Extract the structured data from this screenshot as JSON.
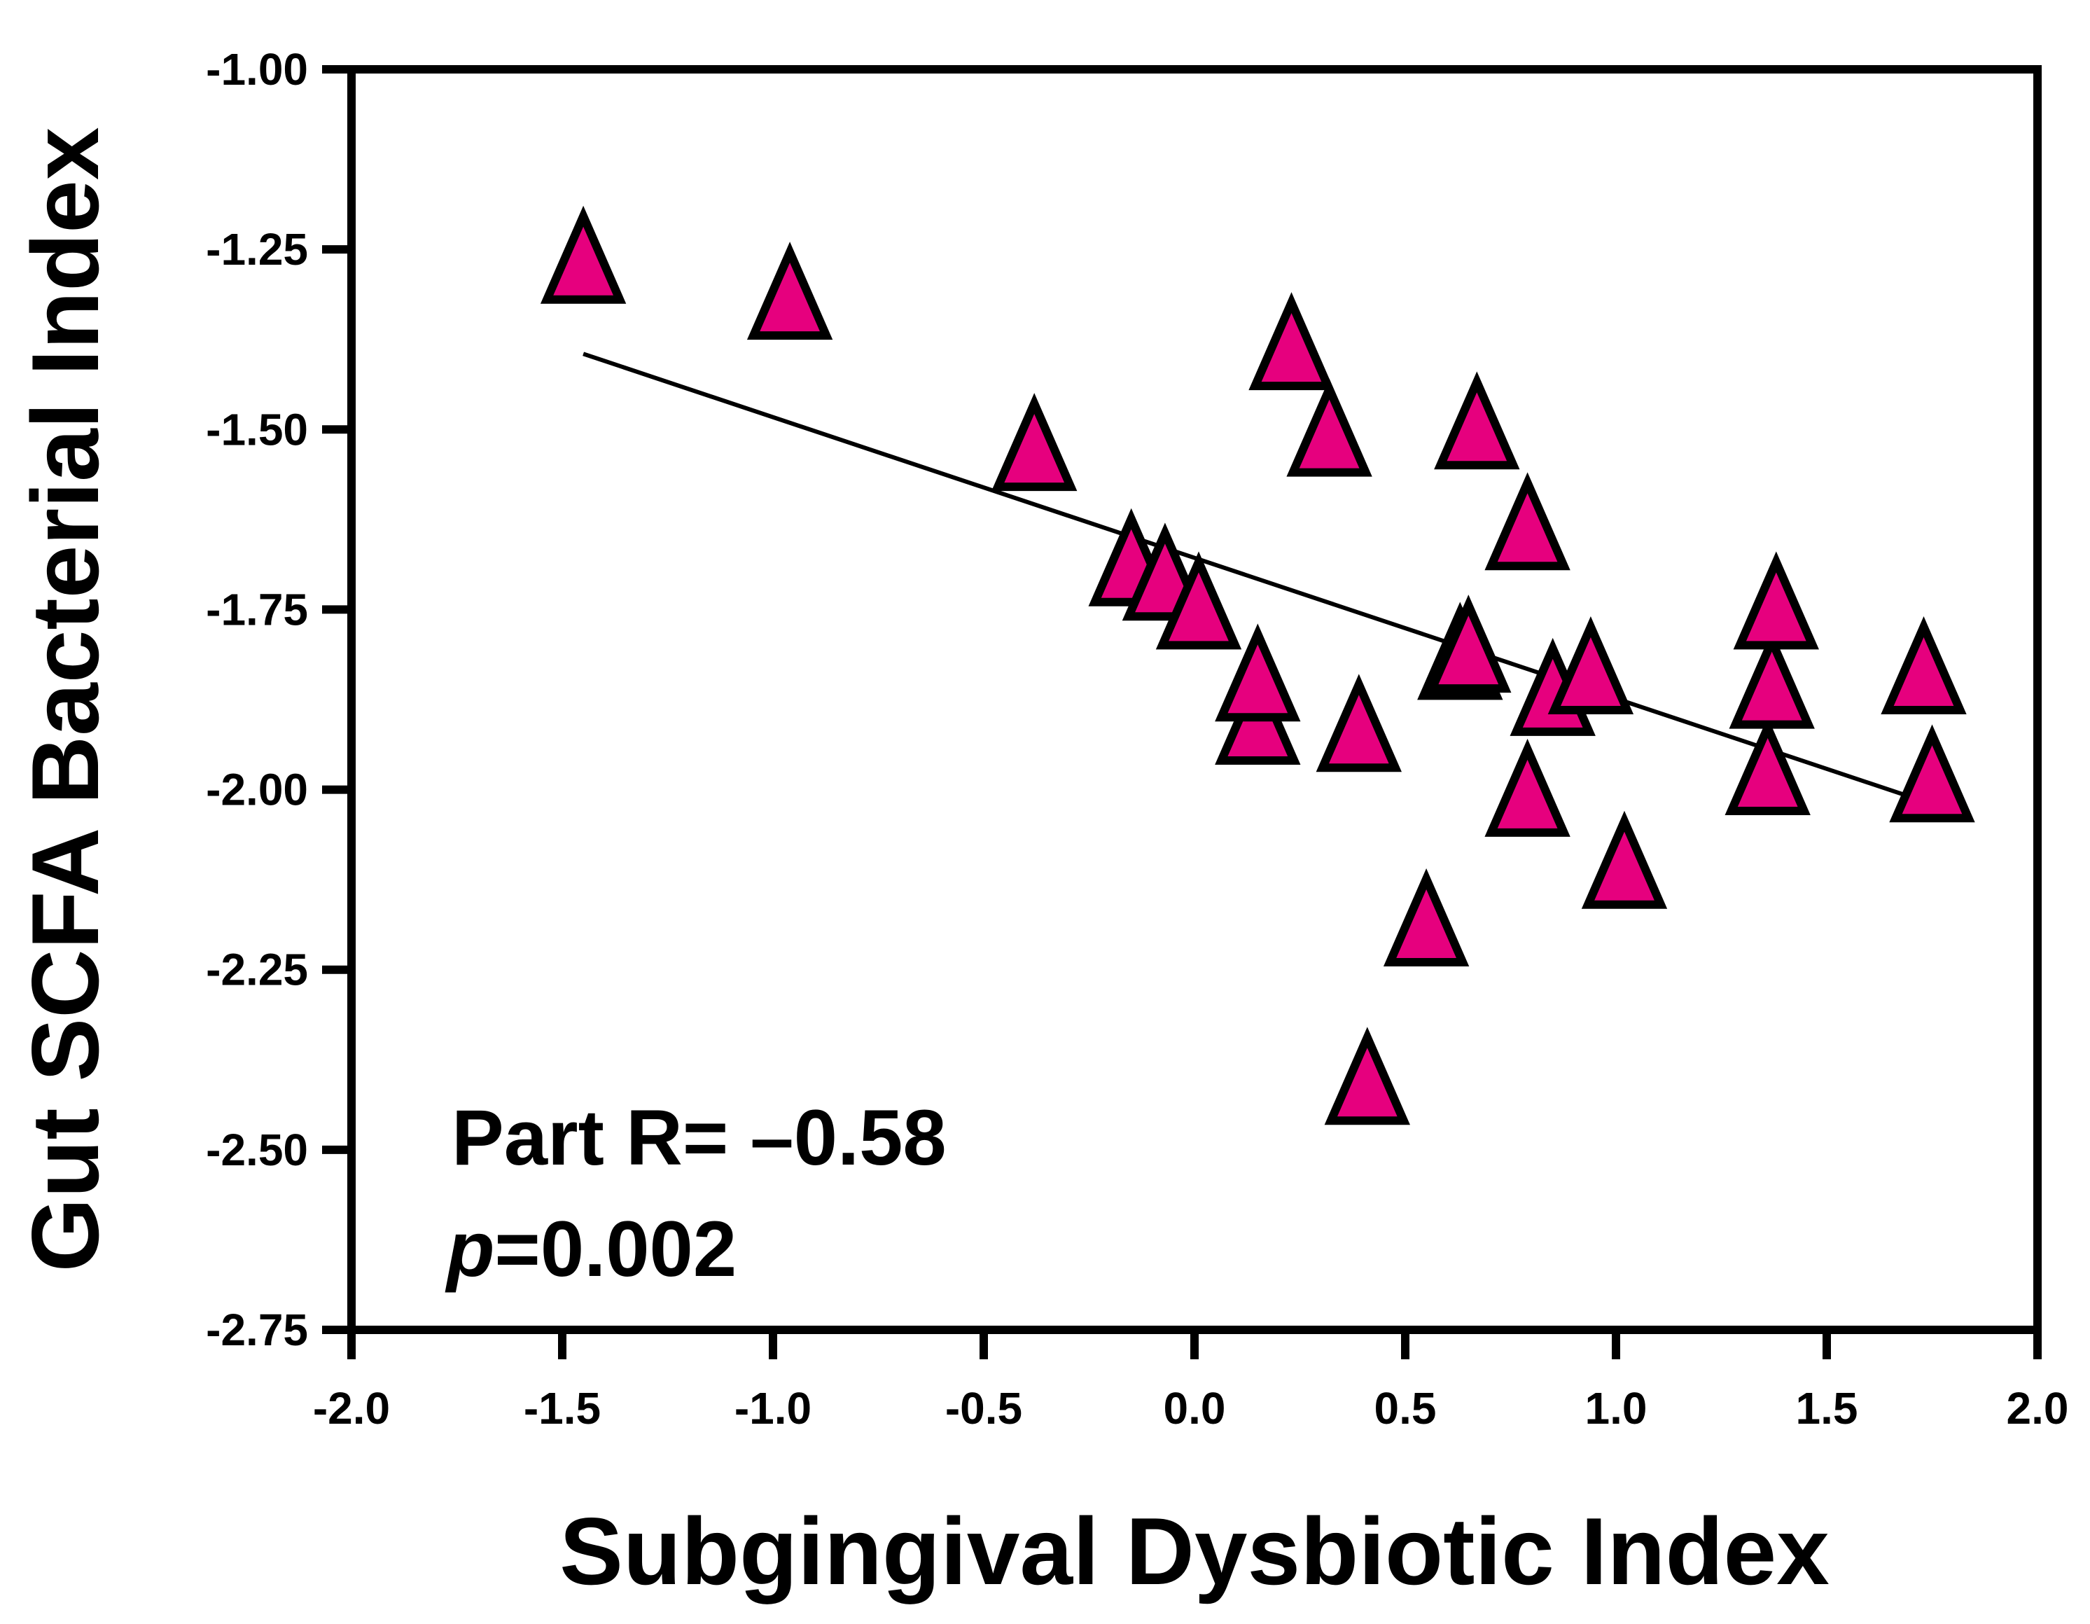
{
  "chart_data": {
    "type": "scatter",
    "title": "",
    "xlabel": "Subgingival Dysbiotic Index",
    "ylabel": "Gut SCFA Bacterial Index",
    "xlim": [
      -2.0,
      2.0
    ],
    "ylim": [
      -2.75,
      -1.0
    ],
    "xticks": [
      -2.0,
      -1.5,
      -1.0,
      -0.5,
      0.0,
      0.5,
      1.0,
      1.5,
      2.0
    ],
    "xtick_labels": [
      "-2.0",
      "-1.5",
      "-1.0",
      "-0.5",
      "0.0",
      "0.5",
      "1.0",
      "1.5",
      "2.0"
    ],
    "yticks": [
      -1.0,
      -1.25,
      -1.5,
      -1.75,
      -2.0,
      -2.25,
      -2.5,
      -2.75
    ],
    "ytick_labels": [
      "-1.00",
      "-1.25",
      "-1.50",
      "-1.75",
      "-2.00",
      "-2.25",
      "-2.50",
      "-2.75"
    ],
    "grid": false,
    "marker": "triangle",
    "marker_color": "#E6007E",
    "marker_edge_color": "#000000",
    "series": [
      {
        "name": "samples",
        "points": [
          [
            -1.45,
            -1.27
          ],
          [
            -0.96,
            -1.32
          ],
          [
            -0.38,
            -1.53
          ],
          [
            -0.15,
            -1.69
          ],
          [
            -0.07,
            -1.71
          ],
          [
            0.01,
            -1.75
          ],
          [
            0.15,
            -1.91
          ],
          [
            0.15,
            -1.85
          ],
          [
            0.23,
            -1.39
          ],
          [
            0.32,
            -1.51
          ],
          [
            0.39,
            -1.92
          ],
          [
            0.41,
            -2.41
          ],
          [
            0.55,
            -2.19
          ],
          [
            0.63,
            -1.82
          ],
          [
            0.65,
            -1.81
          ],
          [
            0.67,
            -1.5
          ],
          [
            0.79,
            -2.01
          ],
          [
            0.79,
            -1.64
          ],
          [
            0.85,
            -1.87
          ],
          [
            0.94,
            -1.84
          ],
          [
            1.02,
            -2.11
          ],
          [
            1.36,
            -1.98
          ],
          [
            1.37,
            -1.86
          ],
          [
            1.38,
            -1.75
          ],
          [
            1.73,
            -1.84
          ],
          [
            1.75,
            -1.99
          ]
        ]
      }
    ],
    "regression_line": {
      "x": [
        -1.45,
        1.75
      ],
      "y": [
        -1.395,
        -2.02
      ]
    },
    "annotation_r_label": "Part R= –0.58",
    "annotation_p_symbol": "p",
    "annotation_p_value": "=0.002"
  }
}
